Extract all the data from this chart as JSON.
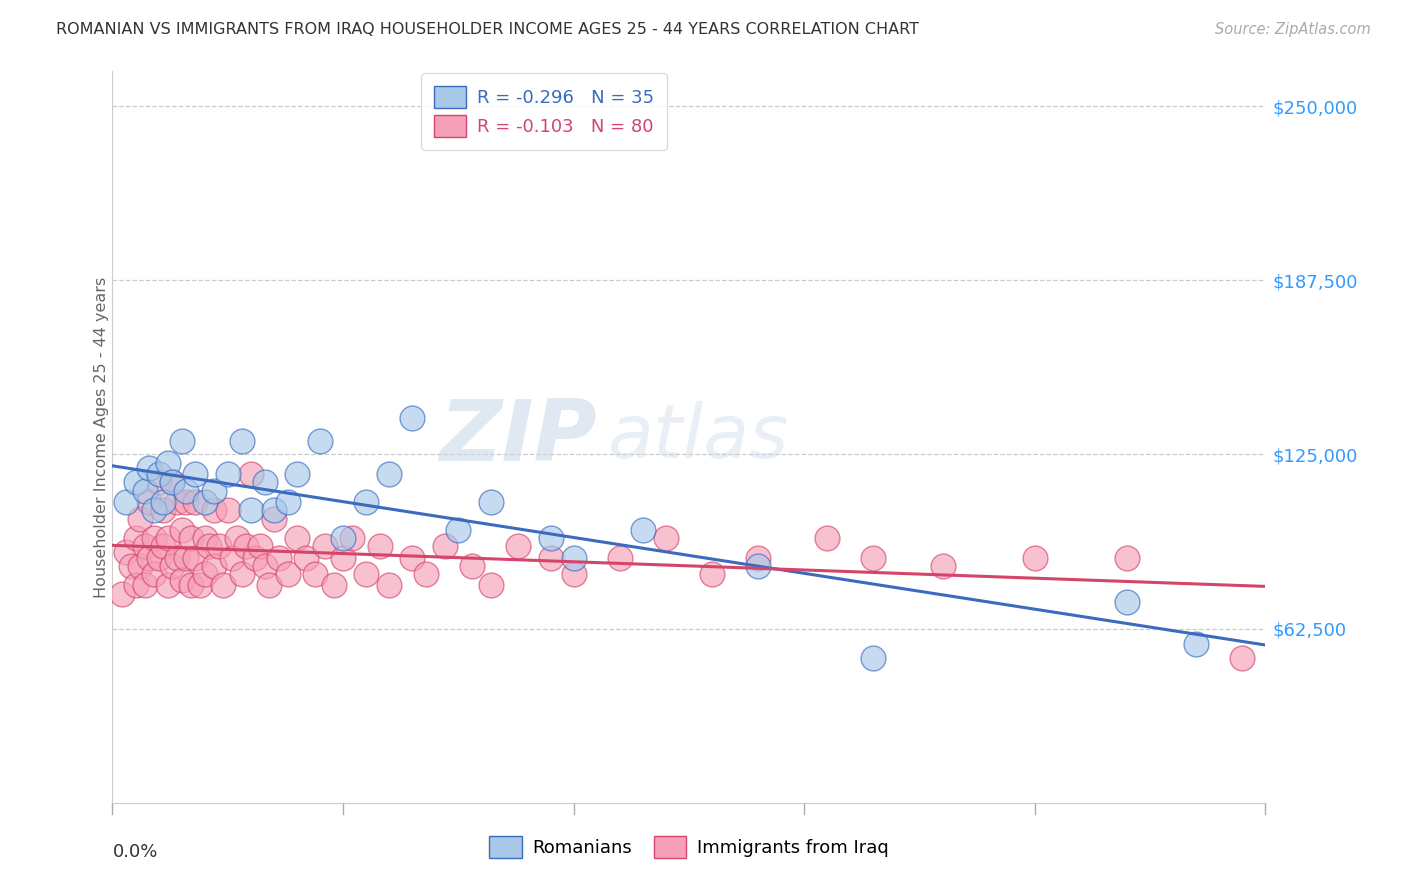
{
  "title": "ROMANIAN VS IMMIGRANTS FROM IRAQ HOUSEHOLDER INCOME AGES 25 - 44 YEARS CORRELATION CHART",
  "source": "Source: ZipAtlas.com",
  "ylabel": "Householder Income Ages 25 - 44 years",
  "ytick_labels": [
    "$62,500",
    "$125,000",
    "$187,500",
    "$250,000"
  ],
  "ytick_values": [
    62500,
    125000,
    187500,
    250000
  ],
  "ymin": 0,
  "ymax": 262500,
  "xmin": 0.0,
  "xmax": 0.25,
  "legend_romanian": "R = -0.296   N = 35",
  "legend_iraq": "R = -0.103   N = 80",
  "watermark_zip": "ZIP",
  "watermark_atlas": "atlas",
  "romanian_color": "#a8c8e8",
  "iraq_color": "#f5a0b8",
  "romanian_line_color": "#3a6bbf",
  "iraq_line_color": "#d4456a",
  "title_color": "#333333",
  "ylabel_color": "#666666",
  "ytick_color": "#3399ff",
  "source_color": "#aaaaaa",
  "background_color": "#ffffff",
  "grid_color": "#cccccc",
  "romanians_x": [
    0.003,
    0.005,
    0.007,
    0.008,
    0.009,
    0.01,
    0.011,
    0.012,
    0.013,
    0.015,
    0.016,
    0.018,
    0.02,
    0.022,
    0.025,
    0.028,
    0.03,
    0.033,
    0.035,
    0.038,
    0.04,
    0.045,
    0.05,
    0.055,
    0.06,
    0.065,
    0.075,
    0.082,
    0.095,
    0.1,
    0.115,
    0.14,
    0.165,
    0.22,
    0.235
  ],
  "romanians_y": [
    108000,
    115000,
    112000,
    120000,
    105000,
    118000,
    108000,
    122000,
    115000,
    130000,
    112000,
    118000,
    108000,
    112000,
    118000,
    130000,
    105000,
    115000,
    105000,
    108000,
    118000,
    130000,
    95000,
    108000,
    118000,
    138000,
    98000,
    108000,
    95000,
    88000,
    98000,
    85000,
    52000,
    72000,
    57000
  ],
  "iraq_x": [
    0.002,
    0.003,
    0.004,
    0.005,
    0.005,
    0.006,
    0.006,
    0.007,
    0.007,
    0.008,
    0.008,
    0.009,
    0.009,
    0.01,
    0.01,
    0.011,
    0.011,
    0.012,
    0.012,
    0.013,
    0.013,
    0.014,
    0.014,
    0.015,
    0.015,
    0.016,
    0.016,
    0.017,
    0.017,
    0.018,
    0.018,
    0.019,
    0.02,
    0.02,
    0.021,
    0.022,
    0.022,
    0.023,
    0.024,
    0.025,
    0.026,
    0.027,
    0.028,
    0.029,
    0.03,
    0.031,
    0.032,
    0.033,
    0.034,
    0.035,
    0.036,
    0.038,
    0.04,
    0.042,
    0.044,
    0.046,
    0.048,
    0.05,
    0.052,
    0.055,
    0.058,
    0.06,
    0.065,
    0.068,
    0.072,
    0.078,
    0.082,
    0.088,
    0.095,
    0.1,
    0.11,
    0.12,
    0.13,
    0.14,
    0.155,
    0.165,
    0.18,
    0.2,
    0.22,
    0.245
  ],
  "iraq_y": [
    75000,
    90000,
    85000,
    95000,
    78000,
    102000,
    85000,
    92000,
    78000,
    108000,
    88000,
    95000,
    82000,
    115000,
    88000,
    105000,
    92000,
    95000,
    78000,
    115000,
    85000,
    108000,
    88000,
    98000,
    80000,
    108000,
    88000,
    95000,
    78000,
    108000,
    88000,
    78000,
    95000,
    82000,
    92000,
    105000,
    85000,
    92000,
    78000,
    105000,
    88000,
    95000,
    82000,
    92000,
    118000,
    88000,
    92000,
    85000,
    78000,
    102000,
    88000,
    82000,
    95000,
    88000,
    82000,
    92000,
    78000,
    88000,
    95000,
    82000,
    92000,
    78000,
    88000,
    82000,
    92000,
    85000,
    78000,
    92000,
    88000,
    82000,
    88000,
    95000,
    82000,
    88000,
    95000,
    88000,
    85000,
    88000,
    88000,
    52000
  ]
}
